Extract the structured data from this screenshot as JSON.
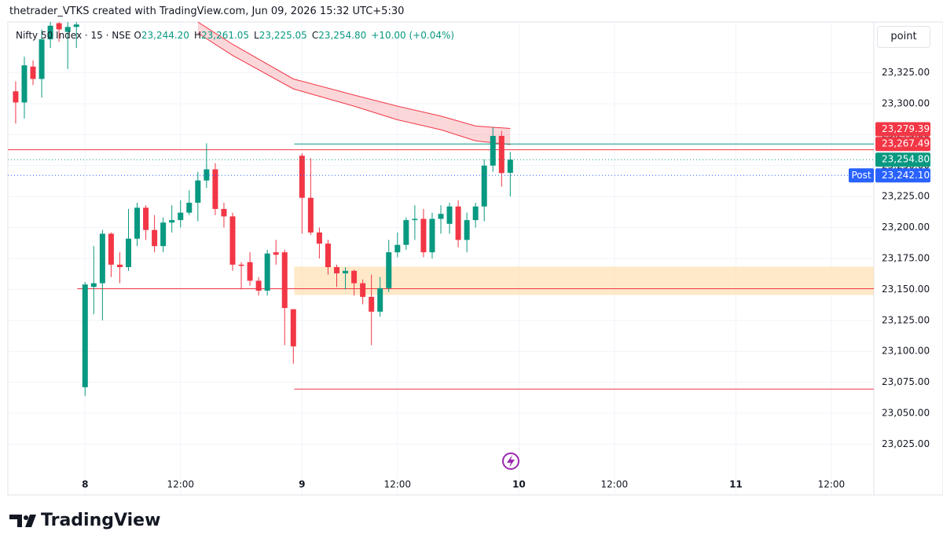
{
  "chart_data": {
    "type": "candlestick",
    "header": "thetrader_VTKS created with TradingView.com, Jun 09, 2026 15:32 UTC+5:30",
    "symbol": "Nifty 50 Index · 15 · NSE",
    "ohlc_legend": [
      {
        "key": "O",
        "value": "23,244.20"
      },
      {
        "key": "H",
        "value": "23,261.05"
      },
      {
        "key": "L",
        "value": "23,225.05"
      },
      {
        "key": "C",
        "value": "23,254.80"
      }
    ],
    "change": "+10.00 (+0.04%)",
    "unit_button": "point",
    "brand": "TradingView",
    "up_color": "#089981",
    "down_color": "#f23645",
    "open": [
      23310,
      23301,
      23330,
      23320,
      23352,
      23365,
      23358,
      23362,
      23071,
      23152,
      23155,
      23195,
      23170,
      23168,
      23191,
      23216,
      23198,
      23185,
      23204,
      23206,
      23212,
      23220,
      23238,
      23247,
      23215,
      23209,
      23170,
      23172,
      23157,
      23149,
      23180,
      23180,
      23134,
      23258,
      23224,
      23196,
      23187,
      23168,
      23163,
      23165,
      23155,
      23144,
      23132,
      23151,
      23180,
      23186,
      23206,
      23207,
      23180,
      23207,
      23203,
      23217,
      23190,
      23206,
      23217,
      23250,
      23274,
      23244.2
    ],
    "high": [
      23318,
      23338,
      23335,
      23360,
      23366,
      23366,
      23366,
      23366,
      23156,
      23185,
      23198,
      23196,
      23180,
      23215,
      23220,
      23218,
      23210,
      23208,
      23218,
      23222,
      23230,
      23245,
      23268,
      23252,
      23220,
      23212,
      23172,
      23180,
      23160,
      23182,
      23190,
      23182,
      23134,
      23260,
      23256,
      23200,
      23190,
      23170,
      23168,
      23166,
      23158,
      23162,
      23160,
      23190,
      23196,
      23208,
      23218,
      23215,
      23212,
      23218,
      23220,
      23222,
      23212,
      23220,
      23255,
      23281,
      23278,
      23261.05
    ],
    "low": [
      23284,
      23288,
      23315,
      23305,
      23345,
      23350,
      23328,
      23345,
      23064,
      23130,
      23125,
      23160,
      23155,
      23165,
      23185,
      23190,
      23180,
      23180,
      23196,
      23200,
      23210,
      23205,
      23232,
      23210,
      23200,
      23165,
      23150,
      23153,
      23145,
      23145,
      23170,
      23105,
      23090,
      23195,
      23194,
      23175,
      23162,
      23152,
      23150,
      23145,
      23138,
      23105,
      23128,
      23148,
      23176,
      23182,
      23190,
      23176,
      23175,
      23195,
      23195,
      23184,
      23180,
      23200,
      23205,
      23245,
      23233,
      23225.05
    ],
    "close": [
      23301,
      23331,
      23320,
      23352,
      23363,
      23360,
      23362,
      23364,
      23154,
      23155,
      23195,
      23170,
      23168,
      23191,
      23216,
      23198,
      23185,
      23204,
      23206,
      23212,
      23220,
      23238,
      23247,
      23215,
      23209,
      23170,
      23169,
      23157,
      23149,
      23179,
      23178,
      23135,
      23104,
      23224,
      23196,
      23187,
      23168,
      23163,
      23165,
      23155,
      23144,
      23132,
      23151,
      23180,
      23186,
      23206,
      23207,
      23180,
      23207,
      23211,
      23217,
      23190,
      23206,
      23217,
      23250,
      23274,
      23244,
      23254.8
    ],
    "band": {
      "color": "#f23645",
      "x": [
        21,
        25,
        32,
        39,
        44,
        49,
        53,
        57
      ],
      "upper": [
        23366,
        23348,
        23320,
        23307,
        23298,
        23290,
        23282,
        23280
      ],
      "lower": [
        23357,
        23339,
        23312,
        23298,
        23287,
        23279,
        23270,
        23267
      ]
    },
    "levels": [
      {
        "value": 23262.8,
        "color": "#f23645"
      },
      {
        "value": 23267.49,
        "color": "#089981",
        "from": 32.1
      },
      {
        "value": 23150.6,
        "color": "#f23645",
        "from": 7.1
      },
      {
        "value": 23069.5,
        "color": "#f23645",
        "from": 32.1
      }
    ],
    "zone": {
      "from": 32.1,
      "top": 23168.4,
      "bottom": 23145.5,
      "color": "#ffe0b2"
    },
    "price_labels": [
      {
        "value": 23279.39,
        "label": "23,279.39",
        "color": "#f23645"
      },
      {
        "value": 23267.49,
        "label": "23,267.49",
        "color": "#f23645"
      },
      {
        "value": 23254.8,
        "label": "23,254.80",
        "color": "#089981",
        "line": "dotted"
      },
      {
        "value": 23242.1,
        "label": "23,242.10",
        "color": "#2962ff",
        "tag": "Post",
        "line": "dotted"
      }
    ],
    "xlim": [
      -0.9,
      98.9
    ],
    "xticks": [
      {
        "value": 8,
        "label": "8"
      },
      {
        "value": 19,
        "label": "12:00"
      },
      {
        "value": 33,
        "label": "9"
      },
      {
        "value": 44,
        "label": "12:00"
      },
      {
        "value": 58,
        "label": "10"
      },
      {
        "value": 69,
        "label": "12:00"
      },
      {
        "value": 83,
        "label": "11"
      },
      {
        "value": 94,
        "label": "12:00"
      }
    ],
    "ylim": [
      22984,
      23366
    ],
    "yticks": [
      {
        "value": 23025,
        "label": "23,025.00"
      },
      {
        "value": 23050,
        "label": "23,050.00"
      },
      {
        "value": 23075,
        "label": "23,075.00"
      },
      {
        "value": 23100,
        "label": "23,100.00"
      },
      {
        "value": 23125,
        "label": "23,125.00"
      },
      {
        "value": 23150,
        "label": "23,150.00"
      },
      {
        "value": 23175,
        "label": "23,175.00"
      },
      {
        "value": 23200,
        "label": "23,200.00"
      },
      {
        "value": 23225,
        "label": "23,225.00"
      },
      {
        "value": 23250,
        "label": "23,250.00"
      },
      {
        "value": 23275,
        "label": "23,275.00"
      },
      {
        "value": 23300,
        "label": "23,300.00"
      },
      {
        "value": 23325,
        "label": "23,325.00"
      }
    ],
    "grid": true
  }
}
